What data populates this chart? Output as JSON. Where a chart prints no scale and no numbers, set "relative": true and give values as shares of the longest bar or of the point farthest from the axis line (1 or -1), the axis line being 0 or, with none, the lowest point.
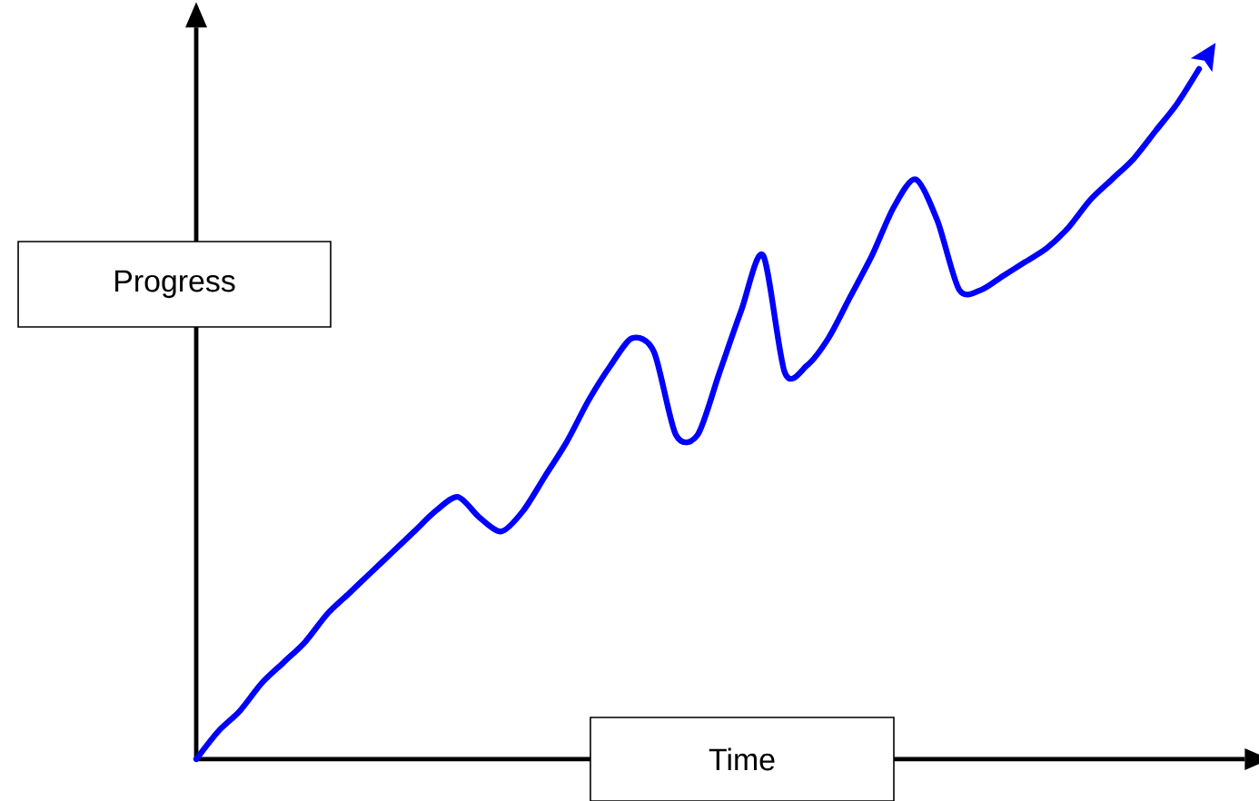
{
  "chart_data": {
    "type": "line",
    "relative": true,
    "xlabel": "Time",
    "ylabel": "Progress",
    "marker": "none",
    "line_style": "solid",
    "categories": [
      null,
      null,
      null,
      null,
      null,
      null,
      null,
      null,
      null,
      null,
      null,
      null,
      null,
      null,
      null,
      null,
      null,
      null,
      null,
      null,
      null,
      null,
      null,
      null,
      null,
      null,
      null,
      null,
      null,
      null,
      null,
      null,
      null,
      null,
      null,
      null,
      null,
      null,
      null,
      null,
      null,
      null,
      null,
      null,
      null,
      null,
      null
    ],
    "series": [
      {
        "color": "#0000ff",
        "values": [
          0,
          0.04,
          0.07,
          0.11,
          0.14,
          0.17,
          0.21,
          0.24,
          0.27,
          0.3,
          0.33,
          0.36,
          0.38,
          0.35,
          0.33,
          0.36,
          0.41,
          0.46,
          0.52,
          0.57,
          0.61,
          0.59,
          0.47,
          0.47,
          0.56,
          0.65,
          0.73,
          0.56,
          0.57,
          0.61,
          0.67,
          0.73,
          0.8,
          0.84,
          0.78,
          0.68,
          0.68,
          0.7,
          0.72,
          0.74,
          0.77,
          0.81,
          0.84,
          0.87,
          0.91,
          0.95,
          1
        ]
      }
    ]
  }
}
